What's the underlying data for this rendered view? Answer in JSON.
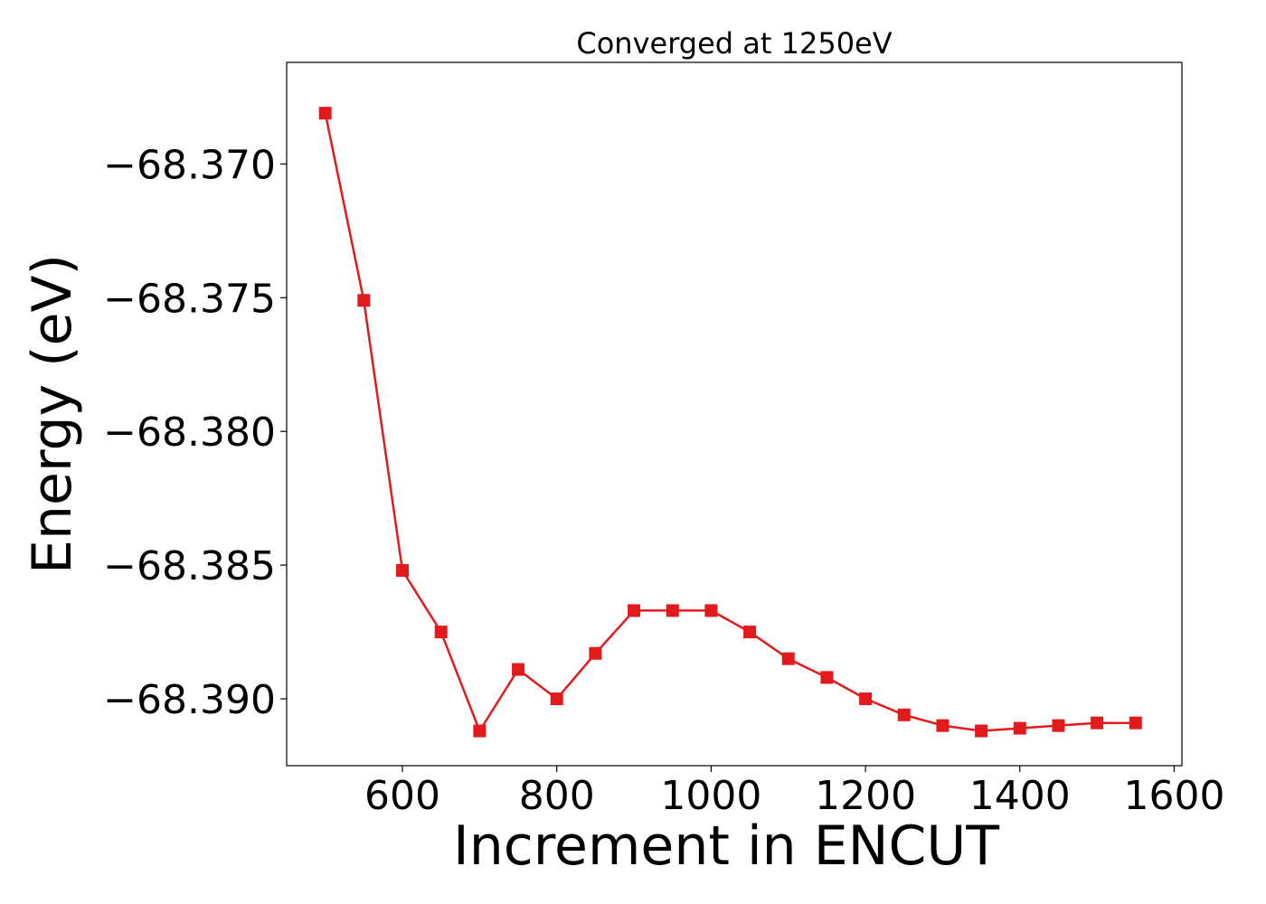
{
  "chart_data": {
    "type": "line",
    "title": "Converged at 1250eV",
    "xlabel": "Increment in ENCUT",
    "ylabel": "Energy (eV)",
    "xlim": [
      450,
      1610
    ],
    "ylim": [
      -68.3925,
      -68.3662
    ],
    "x_ticks": [
      600,
      800,
      1000,
      1200,
      1400,
      1600
    ],
    "x_tick_labels": [
      "600",
      "800",
      "1000",
      "1200",
      "1400",
      "1600"
    ],
    "y_ticks": [
      -68.37,
      -68.375,
      -68.38,
      -68.385,
      -68.39
    ],
    "y_tick_labels": [
      "−68.370",
      "−68.375",
      "−68.380",
      "−68.385",
      "−68.390"
    ],
    "grid": false,
    "series": [
      {
        "color": "#e31a1c",
        "marker": "square",
        "x": [
          500,
          550,
          600,
          650,
          700,
          750,
          800,
          850,
          900,
          950,
          1000,
          1050,
          1100,
          1150,
          1200,
          1250,
          1300,
          1350,
          1400,
          1450,
          1500,
          1550
        ],
        "y": [
          -68.3681,
          -68.3751,
          -68.3852,
          -68.3875,
          -68.3912,
          -68.3889,
          -68.39,
          -68.3883,
          -68.3867,
          -68.3867,
          -68.3867,
          -68.3875,
          -68.3885,
          -68.3892,
          -68.39,
          -68.3906,
          -68.391,
          -68.3912,
          -68.3911,
          -68.391,
          -68.3909,
          -68.3909
        ]
      }
    ]
  }
}
